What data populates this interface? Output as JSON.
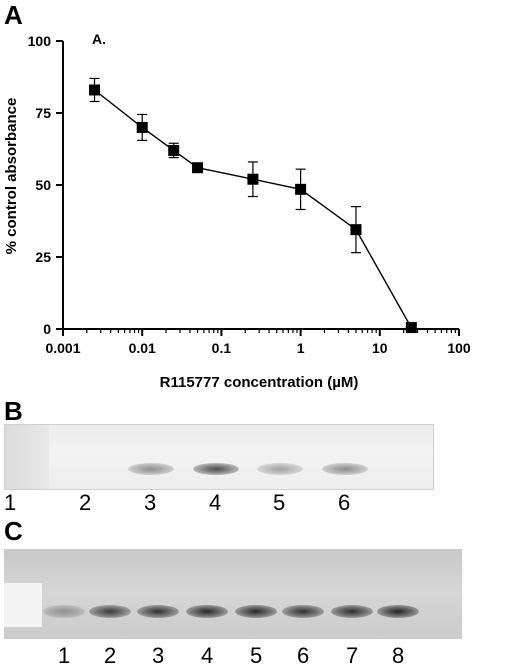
{
  "panel_letters": {
    "a": "A",
    "b": "B",
    "c": "C"
  },
  "chart_data": {
    "type": "line",
    "subpanel_label": "A.",
    "xlabel": "R115777 concentration (µM)",
    "ylabel": "% control absorbance",
    "xscale": "log",
    "xlim": [
      0.001,
      100
    ],
    "ylim": [
      0,
      100
    ],
    "xticks": [
      "0.001",
      "0.01",
      "0.1",
      "1",
      "10",
      "100"
    ],
    "yticks": [
      "0",
      "25",
      "50",
      "75",
      "100"
    ],
    "series": [
      {
        "x": [
          0.0025,
          0.01,
          0.025,
          0.05,
          0.25,
          1,
          5,
          25
        ],
        "y": [
          83,
          70,
          62,
          56,
          52,
          48.5,
          34.5,
          0.5
        ],
        "err": [
          4,
          4.5,
          2.5,
          1,
          6,
          7,
          8,
          0
        ],
        "marker": "square",
        "color": "#000000"
      }
    ],
    "grid": false,
    "legend": "none"
  },
  "gel_b": {
    "lanes": [
      "1",
      "2",
      "3",
      "4",
      "5",
      "6"
    ],
    "band_intensity": [
      0,
      0,
      0.45,
      0.75,
      0.35,
      0.45
    ]
  },
  "gel_c": {
    "lanes": [
      "1",
      "2",
      "3",
      "4",
      "5",
      "6",
      "7",
      "8"
    ],
    "band_intensity": [
      0.35,
      0.8,
      0.85,
      0.9,
      0.9,
      0.85,
      0.88,
      0.92
    ]
  }
}
